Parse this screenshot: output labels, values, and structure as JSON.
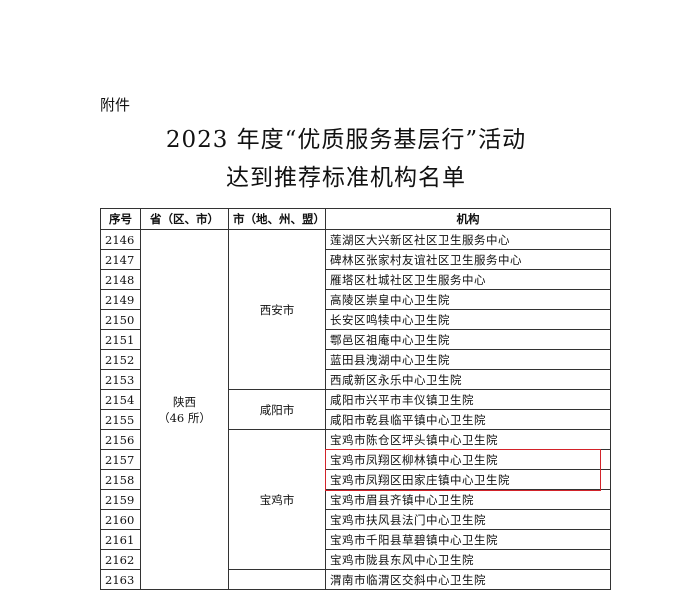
{
  "header": {
    "attachment": "附件",
    "title_lines": [
      "2023 年度“优质服务基层行”活动",
      "达到推荐标准机构名单"
    ]
  },
  "table": {
    "columns": [
      "序号",
      "省（区、市）",
      "市（地、州、盟）",
      "机构"
    ],
    "province": {
      "name": "陕西",
      "count": "（46 所）"
    },
    "groups": [
      {
        "city": "西安市",
        "rows": [
          [
            "2146",
            "莲湖区大兴新区社区卫生服务中心"
          ],
          [
            "2147",
            "碑林区张家村友谊社区卫生服务中心"
          ],
          [
            "2148",
            "雁塔区杜城社区卫生服务中心"
          ],
          [
            "2149",
            "高陵区崇皇中心卫生院"
          ],
          [
            "2150",
            "长安区鸣犊中心卫生院"
          ],
          [
            "2151",
            "鄠邑区祖庵中心卫生院"
          ],
          [
            "2152",
            "蓝田县洩湖中心卫生院"
          ],
          [
            "2153",
            "西咸新区永乐中心卫生院"
          ]
        ]
      },
      {
        "city": "咸阳市",
        "rows": [
          [
            "2154",
            "咸阳市兴平市丰仪镇卫生院"
          ],
          [
            "2155",
            "咸阳市乾县临平镇中心卫生院"
          ]
        ]
      },
      {
        "city": "宝鸡市",
        "rows": [
          [
            "2156",
            "宝鸡市陈仓区坪头镇中心卫生院"
          ],
          [
            "2157",
            "宝鸡市凤翔区柳林镇中心卫生院"
          ],
          [
            "2158",
            "宝鸡市凤翔区田家庄镇中心卫生院"
          ],
          [
            "2159",
            "宝鸡市眉县齐镇中心卫生院"
          ],
          [
            "2160",
            "宝鸡市扶风县法门中心卫生院"
          ],
          [
            "2161",
            "宝鸡市千阳县草碧镇中心卫生院"
          ],
          [
            "2162",
            "宝鸡市陇县东风中心卫生院"
          ]
        ]
      },
      {
        "rows": [
          [
            "2163",
            "渭南市临渭区交斜中心卫生院"
          ]
        ]
      }
    ]
  }
}
